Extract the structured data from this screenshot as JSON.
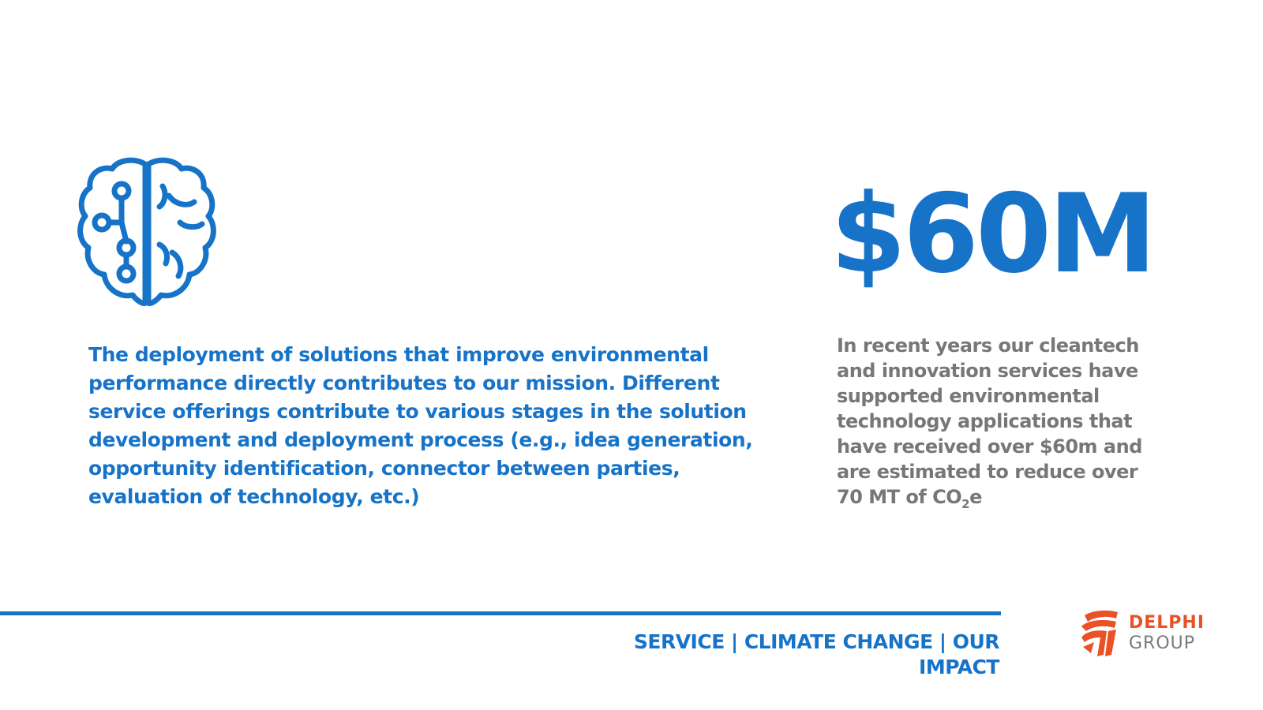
{
  "colors": {
    "accent": "#1673c8",
    "body_gray": "#777777",
    "logo_orange": "#ea5126",
    "logo_gray": "#7a7a7a"
  },
  "icon": {
    "name": "brain-circuit-icon"
  },
  "left_text": "The deployment of solutions that improve environmental performance directly contributes to our mission. Different service offerings contribute to various stages in the solution development and deployment process (e.g., idea generation, opportunity identification, connector between parties, evaluation of technology, etc.)",
  "stat": {
    "value": "$60M",
    "description_before": "In recent years our cleantech and innovation services have supported environmental technology applications that have received over $60m and are estimated to reduce over 70 MT of CO",
    "description_sub": "2",
    "description_after": "e"
  },
  "footer": {
    "label": "SERVICE | CLIMATE CHANGE | OUR IMPACT"
  },
  "logo": {
    "line1": "DELPHI",
    "line2": "GROUP",
    "mark_icon": "delphi-logo-mark-icon"
  }
}
